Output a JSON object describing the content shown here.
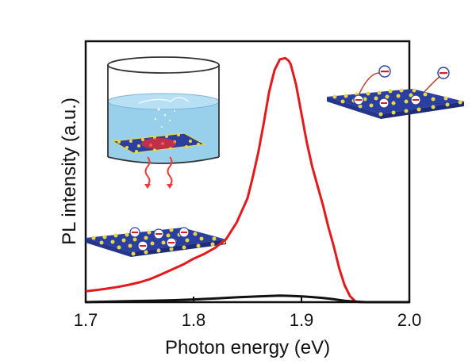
{
  "chart_data": {
    "type": "line",
    "xlabel": "Photon energy (eV)",
    "ylabel": "PL intensity (a.u.)",
    "xlim": [
      1.7,
      2.0
    ],
    "ylim": [
      0,
      1.08
    ],
    "xticks": [
      "1.7",
      "1.8",
      "1.9",
      "2.0"
    ],
    "grid": false,
    "legend": "none",
    "series": [
      {
        "color": "#e31a1c",
        "x": [
          1.7,
          1.71,
          1.72,
          1.73,
          1.74,
          1.75,
          1.76,
          1.77,
          1.78,
          1.79,
          1.8,
          1.81,
          1.82,
          1.83,
          1.84,
          1.845,
          1.85,
          1.855,
          1.86,
          1.865,
          1.87,
          1.875,
          1.88,
          1.885,
          1.888,
          1.89,
          1.895,
          1.9,
          1.905,
          1.91,
          1.915,
          1.92,
          1.925,
          1.93,
          1.935,
          1.94,
          1.945,
          1.95,
          1.955,
          1.96,
          1.98,
          2.0
        ],
        "y": [
          0.045,
          0.05,
          0.056,
          0.063,
          0.072,
          0.082,
          0.096,
          0.115,
          0.135,
          0.155,
          0.18,
          0.2,
          0.225,
          0.26,
          0.33,
          0.38,
          0.43,
          0.52,
          0.62,
          0.74,
          0.87,
          0.96,
          1.005,
          1.01,
          1.0,
          0.985,
          0.9,
          0.78,
          0.66,
          0.56,
          0.48,
          0.4,
          0.31,
          0.23,
          0.14,
          0.07,
          0.025,
          0.003,
          0.0,
          0.0,
          0.0,
          0.0
        ]
      },
      {
        "color": "#111111",
        "x": [
          1.7,
          1.72,
          1.74,
          1.76,
          1.78,
          1.8,
          1.82,
          1.84,
          1.86,
          1.88,
          1.89,
          1.9,
          1.91,
          1.92,
          1.93,
          1.94,
          1.95,
          1.96,
          1.98,
          2.0
        ],
        "y": [
          0.0,
          0.002,
          0.004,
          0.006,
          0.008,
          0.011,
          0.015,
          0.02,
          0.024,
          0.027,
          0.026,
          0.024,
          0.021,
          0.017,
          0.012,
          0.006,
          0.002,
          0.0,
          0.0,
          0.0
        ]
      }
    ]
  }
}
